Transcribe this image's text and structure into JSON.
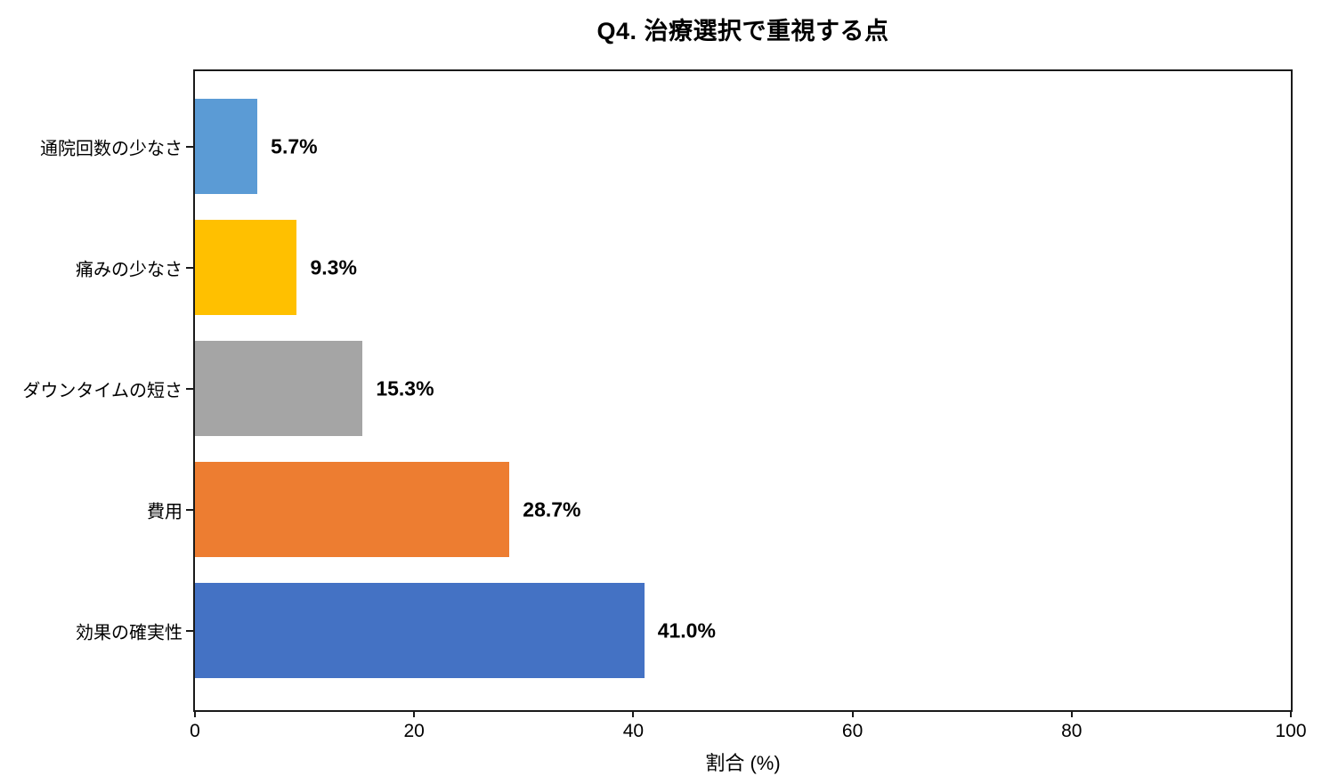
{
  "chart_data": {
    "type": "bar",
    "orientation": "horizontal",
    "title": "Q4. 治療選択で重視する点",
    "xlabel": "割合 (%)",
    "categories": [
      "通院回数の少なさ",
      "痛みの少なさ",
      "ダウンタイムの短さ",
      "費用",
      "効果の確実性"
    ],
    "values": [
      5.7,
      9.3,
      15.3,
      28.7,
      41.0
    ],
    "value_labels": [
      "5.7%",
      "9.3%",
      "15.3%",
      "28.7%",
      "41.0%"
    ],
    "bar_colors": [
      "#5B9BD5",
      "#FFC000",
      "#A5A5A5",
      "#ED7D31",
      "#4472C4"
    ],
    "xlim": [
      0,
      100
    ],
    "x_ticks": [
      0,
      20,
      40,
      60,
      80,
      100
    ],
    "grid": false,
    "legend": false,
    "text_color": "#000000",
    "spine_color": "#1a1a1a",
    "background_color": "#ffffff"
  }
}
